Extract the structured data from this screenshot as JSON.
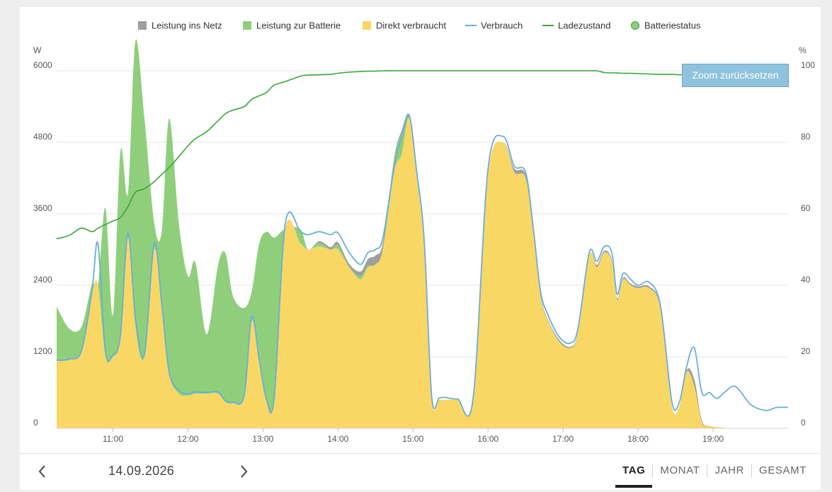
{
  "chart_data": {
    "type": "area",
    "left_axis_unit": "W",
    "right_axis_unit": "%",
    "y_ticks": [
      "0",
      "1200",
      "2400",
      "3600",
      "4800",
      "6000"
    ],
    "y_ticks_right": [
      "0",
      "20",
      "40",
      "60",
      "80",
      "100"
    ],
    "ylim": [
      0,
      6000
    ],
    "ylim_right": [
      0,
      100
    ],
    "xlim": [
      10.25,
      20.0
    ],
    "x_ticks": [
      {
        "t": 11,
        "label": "11:00"
      },
      {
        "t": 12,
        "label": "12:00"
      },
      {
        "t": 13,
        "label": "13:00"
      },
      {
        "t": 14,
        "label": "14:00"
      },
      {
        "t": 15,
        "label": "15:00"
      },
      {
        "t": 16,
        "label": "16:00"
      },
      {
        "t": 17,
        "label": "17:00"
      },
      {
        "t": 18,
        "label": "18:00"
      },
      {
        "t": 19,
        "label": "19:00"
      }
    ],
    "grid": true,
    "legend_position": "top",
    "legend": [
      {
        "label": "Leistung ins Netz",
        "color": "#9e9e9e",
        "marker": "square"
      },
      {
        "label": "Leistung zur Batterie",
        "color": "#8fcf7c",
        "marker": "square"
      },
      {
        "label": "Direkt verbraucht",
        "color": "#f9d765",
        "marker": "square"
      },
      {
        "label": "Verbrauch",
        "color": "#6aaed6",
        "marker": "line"
      },
      {
        "label": "Ladezustand",
        "color": "#3aa636",
        "marker": "line"
      },
      {
        "label": "Batteriestatus",
        "color": "#8fcf7c",
        "marker": "circle"
      }
    ],
    "x": [
      10.25,
      10.42,
      10.58,
      10.72,
      10.8,
      10.9,
      11.0,
      11.1,
      11.2,
      11.3,
      11.42,
      11.55,
      11.65,
      11.75,
      11.88,
      12.0,
      12.1,
      12.25,
      12.4,
      12.5,
      12.6,
      12.75,
      12.85,
      12.95,
      13.05,
      13.15,
      13.3,
      13.5,
      13.6,
      13.75,
      13.9,
      14.0,
      14.15,
      14.3,
      14.4,
      14.5,
      14.6,
      14.75,
      14.85,
      14.95,
      15.05,
      15.15,
      15.25,
      15.35,
      15.42,
      15.5,
      15.6,
      15.8,
      16.0,
      16.2,
      16.35,
      16.5,
      16.6,
      16.7,
      16.8,
      16.95,
      17.1,
      17.2,
      17.35,
      17.45,
      17.55,
      17.65,
      17.72,
      17.8,
      17.9,
      18.0,
      18.15,
      18.3,
      18.45,
      18.55,
      18.65,
      18.75,
      18.85,
      18.95,
      19.05,
      19.15,
      19.3,
      19.5,
      19.7,
      19.85,
      20.0
    ],
    "series": [
      {
        "name": "Direkt verbraucht",
        "color": "#f9d765",
        "values": [
          1140,
          1150,
          1280,
          2250,
          2400,
          1200,
          1200,
          1500,
          3200,
          1700,
          1200,
          3000,
          2000,
          900,
          580,
          550,
          580,
          580,
          580,
          440,
          420,
          520,
          1800,
          1100,
          450,
          500,
          3350,
          3100,
          3000,
          3050,
          3000,
          3000,
          2700,
          2500,
          2700,
          2750,
          3000,
          4300,
          4600,
          5200,
          4200,
          3100,
          500,
          480,
          480,
          480,
          480,
          480,
          4250,
          4800,
          4300,
          4200,
          3300,
          2200,
          1800,
          1450,
          1350,
          1600,
          2900,
          2700,
          2950,
          2800,
          2150,
          2500,
          2400,
          2350,
          2350,
          2000,
          380,
          370,
          950,
          700,
          100,
          40,
          20,
          10,
          0,
          0,
          0,
          0,
          0
        ]
      },
      {
        "name": "Leistung zur Batterie",
        "color": "#8fcf7c",
        "values": [
          900,
          520,
          420,
          160,
          0,
          2500,
          700,
          3150,
          750,
          4800,
          4000,
          450,
          1300,
          4300,
          2850,
          2000,
          2200,
          1000,
          2150,
          2500,
          1800,
          1500,
          500,
          2000,
          2850,
          2700,
          0,
          240,
          0,
          60,
          0,
          70,
          10,
          50,
          30,
          0,
          30,
          200,
          350,
          0,
          50,
          0,
          0,
          0,
          0,
          0,
          0,
          0,
          0,
          0,
          0,
          0,
          0,
          0,
          0,
          0,
          0,
          0,
          0,
          0,
          0,
          0,
          0,
          0,
          0,
          0,
          0,
          0,
          0,
          0,
          0,
          0,
          0,
          0,
          0,
          0,
          0,
          0,
          0,
          0,
          0
        ]
      },
      {
        "name": "Leistung ins Netz",
        "color": "#9e9e9e",
        "values": [
          0,
          0,
          0,
          0,
          0,
          0,
          0,
          0,
          0,
          0,
          0,
          0,
          0,
          0,
          0,
          0,
          0,
          0,
          0,
          0,
          0,
          0,
          0,
          0,
          0,
          0,
          0,
          0,
          0,
          30,
          40,
          50,
          50,
          80,
          110,
          150,
          100,
          50,
          50,
          50,
          50,
          50,
          0,
          0,
          0,
          0,
          0,
          0,
          0,
          0,
          60,
          60,
          50,
          40,
          20,
          30,
          20,
          20,
          0,
          40,
          30,
          30,
          30,
          30,
          30,
          30,
          30,
          30,
          0,
          0,
          30,
          120,
          30,
          0,
          0,
          0,
          0,
          0,
          0,
          0,
          0
        ]
      },
      {
        "name": "Verbrauch",
        "color": "#6aaed6",
        "values": [
          1140,
          1160,
          1300,
          2300,
          3100,
          1300,
          1230,
          1560,
          3280,
          1860,
          1240,
          3100,
          2100,
          940,
          640,
          580,
          610,
          600,
          610,
          460,
          440,
          550,
          1880,
          1150,
          470,
          520,
          3450,
          3300,
          3250,
          3300,
          3250,
          3280,
          2950,
          2750,
          2950,
          3000,
          3200,
          4400,
          4900,
          5250,
          4300,
          3150,
          530,
          510,
          520,
          500,
          490,
          490,
          4350,
          4900,
          4400,
          4300,
          3400,
          2300,
          1900,
          1530,
          1430,
          1680,
          2950,
          2800,
          3050,
          2950,
          2250,
          2600,
          2500,
          2400,
          2450,
          2050,
          450,
          440,
          1050,
          1350,
          600,
          600,
          500,
          600,
          700,
          400,
          300,
          350,
          350
        ]
      },
      {
        "name": "Ladezustand",
        "color": "#3aa636",
        "axis": "right",
        "values": [
          53,
          54,
          56,
          55,
          56,
          57,
          58,
          59,
          62,
          66,
          67,
          69,
          71,
          73,
          76,
          79,
          81,
          83,
          86,
          88,
          89,
          90,
          92,
          93,
          94,
          96,
          97,
          98.5,
          98.8,
          98.9,
          99,
          99.3,
          99.6,
          99.8,
          99.9,
          99.9,
          100,
          100,
          100,
          100,
          100,
          100,
          100,
          100,
          100,
          100,
          100,
          100,
          100,
          100,
          100,
          100,
          100,
          100,
          100,
          100,
          100,
          100,
          100,
          100,
          99.5,
          99.4,
          99.4,
          99.3,
          99.3,
          99.2,
          99.1,
          99,
          99,
          98.9,
          98.9,
          98.9,
          98.9,
          98.9,
          98.7,
          98.6,
          97.8,
          97.5,
          97.2,
          97,
          96.8
        ]
      }
    ]
  },
  "zoom_reset_label": "Zoom zurücksetzen",
  "footer": {
    "date": "14.09.2026",
    "periods": [
      "TAG",
      "MONAT",
      "JAHR",
      "GESAMT"
    ],
    "active_period": "TAG"
  }
}
